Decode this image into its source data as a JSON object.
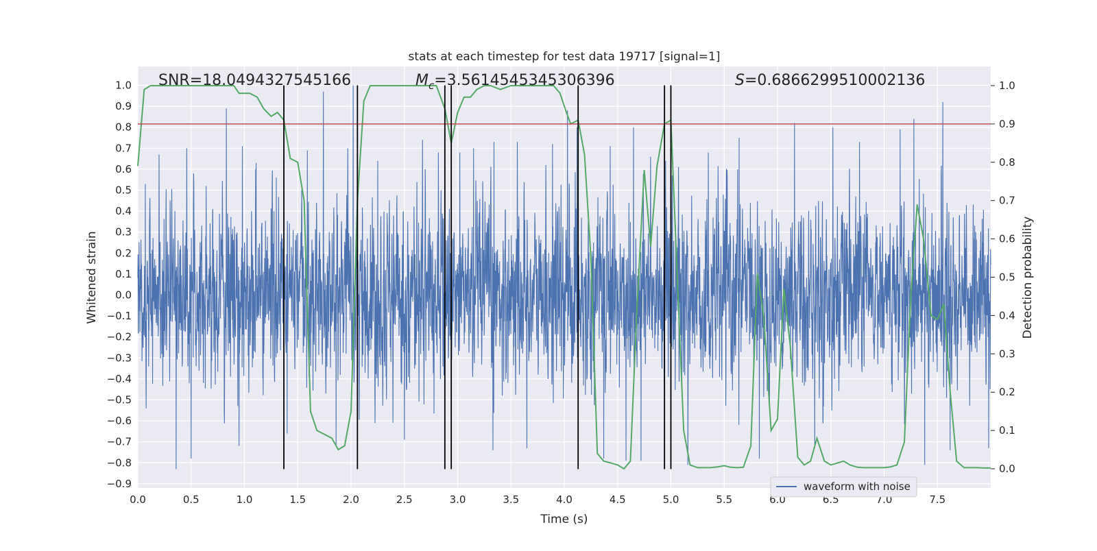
{
  "chart_data": {
    "type": "line",
    "title": "stats at each timestep for test data 19717 [signal=1]",
    "xlabel": "Time (s)",
    "ylabel": "Whitened strain",
    "ylabel_right": "Detection probability",
    "xlim": [
      0.0,
      8.0
    ],
    "ylim": [
      -0.92,
      1.09
    ],
    "ylim_right": [
      -0.05,
      1.05
    ],
    "x_ticks": [
      0.0,
      0.5,
      1.0,
      1.5,
      2.0,
      2.5,
      3.0,
      3.5,
      4.0,
      4.5,
      5.0,
      5.5,
      6.0,
      6.5,
      7.0,
      7.5
    ],
    "x_tick_labels": [
      "0.0",
      "0.5",
      "1.0",
      "1.5",
      "2.0",
      "2.5",
      "3.0",
      "3.5",
      "4.0",
      "4.5",
      "5.0",
      "5.5",
      "6.0",
      "6.5",
      "7.0",
      "7.5"
    ],
    "y_ticks": [
      -0.9,
      -0.8,
      -0.7,
      -0.6,
      -0.5,
      -0.4,
      -0.3,
      -0.2,
      -0.1,
      0.0,
      0.1,
      0.2,
      0.3,
      0.4,
      0.5,
      0.6,
      0.7,
      0.8,
      0.9,
      1.0
    ],
    "y_tick_labels": [
      "−0.9",
      "−0.8",
      "−0.7",
      "−0.6",
      "−0.5",
      "−0.4",
      "−0.3",
      "−0.2",
      "−0.1",
      "0.0",
      "0.1",
      "0.2",
      "0.3",
      "0.4",
      "0.5",
      "0.6",
      "0.7",
      "0.8",
      "0.9",
      "1.0"
    ],
    "y_right_ticks": [
      0.0,
      0.1,
      0.2,
      0.3,
      0.4,
      0.5,
      0.6,
      0.7,
      0.8,
      0.9,
      1.0
    ],
    "y_right_tick_labels": [
      "0.0",
      "0.1",
      "0.2",
      "0.3",
      "0.4",
      "0.5",
      "0.6",
      "0.7",
      "0.8",
      "0.9",
      "1.0"
    ],
    "grid": true,
    "legend": {
      "placement": "lower-right",
      "entries": [
        "waveform with noise"
      ]
    },
    "annotations": {
      "snr": "SNR=18.0494327545166",
      "mc_symbol": "M",
      "mc_subscript": "c",
      "mc_value": "=3.5614545345306396",
      "s_symbol": "S",
      "s_value": "=0.6866299510002136"
    },
    "threshold_right": 0.9,
    "vertical_lines_x": [
      1.37,
      2.06,
      2.88,
      2.94,
      4.13,
      4.94,
      5.0
    ],
    "vertical_lines_y_range": [
      -0.83,
      1.0
    ],
    "colors": {
      "waveform": "#4c72b0",
      "probability": "#55a868",
      "threshold": "#c44e52",
      "vertical": "#000000",
      "background": "#eaeaf2"
    },
    "series": [
      {
        "name": "waveform with noise",
        "axis": "left",
        "sample_count": 4096,
        "typical_amplitude": 0.45,
        "peaks": [
          {
            "x": 0.07,
            "y": 0.53
          },
          {
            "x": 0.2,
            "y": 0.67
          },
          {
            "x": 0.36,
            "y": -0.83
          },
          {
            "x": 0.46,
            "y": 0.7
          },
          {
            "x": 0.5,
            "y": -0.78
          },
          {
            "x": 0.64,
            "y": 0.52
          },
          {
            "x": 0.83,
            "y": 0.89
          },
          {
            "x": 0.95,
            "y": -0.72
          },
          {
            "x": 0.98,
            "y": 0.71
          },
          {
            "x": 1.11,
            "y": 0.63
          },
          {
            "x": 1.3,
            "y": 0.56
          },
          {
            "x": 1.4,
            "y": -0.66
          },
          {
            "x": 1.59,
            "y": 0.69
          },
          {
            "x": 1.74,
            "y": 0.97
          },
          {
            "x": 1.86,
            "y": -0.72
          },
          {
            "x": 1.97,
            "y": 0.7
          },
          {
            "x": 2.02,
            "y": 1.0
          },
          {
            "x": 2.06,
            "y": -0.83
          },
          {
            "x": 2.25,
            "y": 0.64
          },
          {
            "x": 2.5,
            "y": -0.69
          },
          {
            "x": 2.67,
            "y": 0.74
          },
          {
            "x": 2.82,
            "y": 0.68
          },
          {
            "x": 3.02,
            "y": 0.68
          },
          {
            "x": 3.15,
            "y": 0.7
          },
          {
            "x": 3.33,
            "y": -0.74
          },
          {
            "x": 3.34,
            "y": 0.73
          },
          {
            "x": 3.56,
            "y": 0.73
          },
          {
            "x": 3.65,
            "y": -0.73
          },
          {
            "x": 3.89,
            "y": 0.72
          },
          {
            "x": 4.03,
            "y": 0.88
          },
          {
            "x": 4.12,
            "y": 0.8
          },
          {
            "x": 4.37,
            "y": -0.78
          },
          {
            "x": 4.43,
            "y": 0.71
          },
          {
            "x": 4.58,
            "y": -0.79
          },
          {
            "x": 4.65,
            "y": 0.8
          },
          {
            "x": 4.72,
            "y": -0.79
          },
          {
            "x": 4.81,
            "y": 0.66
          },
          {
            "x": 4.95,
            "y": 0.64
          },
          {
            "x": 5.16,
            "y": -0.81
          },
          {
            "x": 5.35,
            "y": 0.68
          },
          {
            "x": 5.64,
            "y": 0.75
          },
          {
            "x": 5.83,
            "y": -0.78
          },
          {
            "x": 6.16,
            "y": 0.82
          },
          {
            "x": 6.35,
            "y": -0.73
          },
          {
            "x": 6.52,
            "y": 0.8
          },
          {
            "x": 6.77,
            "y": 0.73
          },
          {
            "x": 7.15,
            "y": 0.79
          },
          {
            "x": 7.28,
            "y": 0.84
          },
          {
            "x": 7.38,
            "y": -0.81
          },
          {
            "x": 7.55,
            "y": 0.92
          },
          {
            "x": 7.62,
            "y": -0.74
          },
          {
            "x": 7.98,
            "y": -0.73
          }
        ]
      },
      {
        "name": "",
        "axis": "right",
        "x": [
          0.0,
          0.06,
          0.12,
          0.2,
          0.3,
          0.4,
          0.5,
          0.6,
          0.7,
          0.8,
          0.9,
          0.95,
          1.05,
          1.12,
          1.18,
          1.25,
          1.31,
          1.37,
          1.43,
          1.5,
          1.56,
          1.62,
          1.68,
          1.75,
          1.82,
          1.88,
          1.94,
          2.0,
          2.06,
          2.12,
          2.18,
          2.25,
          2.35,
          2.5,
          2.65,
          2.8,
          2.88,
          2.94,
          3.0,
          3.06,
          3.12,
          3.18,
          3.25,
          3.31,
          3.4,
          3.5,
          3.6,
          3.7,
          3.8,
          3.9,
          3.96,
          4.02,
          4.06,
          4.13,
          4.19,
          4.25,
          4.31,
          4.37,
          4.44,
          4.5,
          4.56,
          4.62,
          4.68,
          4.75,
          4.81,
          4.87,
          4.94,
          5.0,
          5.06,
          5.12,
          5.18,
          5.25,
          5.31,
          5.37,
          5.44,
          5.5,
          5.56,
          5.62,
          5.68,
          5.75,
          5.81,
          5.87,
          5.94,
          6.0,
          6.06,
          6.12,
          6.19,
          6.25,
          6.31,
          6.37,
          6.44,
          6.5,
          6.56,
          6.62,
          6.68,
          6.75,
          6.81,
          6.87,
          6.94,
          7.0,
          7.06,
          7.12,
          7.19,
          7.25,
          7.31,
          7.37,
          7.44,
          7.5,
          7.56,
          7.62,
          7.68,
          7.75,
          7.81,
          7.87,
          7.94,
          8.0
        ],
        "values": [
          0.79,
          0.99,
          1.0,
          1.0,
          1.0,
          1.0,
          1.0,
          1.0,
          1.0,
          1.0,
          1.0,
          0.98,
          0.98,
          0.97,
          0.94,
          0.92,
          0.93,
          0.91,
          0.81,
          0.8,
          0.7,
          0.15,
          0.1,
          0.09,
          0.08,
          0.05,
          0.06,
          0.15,
          0.7,
          0.96,
          1.0,
          1.0,
          1.0,
          1.0,
          1.0,
          1.0,
          0.94,
          0.85,
          0.93,
          0.97,
          0.97,
          0.99,
          1.0,
          1.0,
          0.99,
          1.0,
          1.0,
          1.0,
          1.0,
          1.0,
          0.98,
          0.93,
          0.9,
          0.91,
          0.82,
          0.55,
          0.04,
          0.02,
          0.015,
          0.01,
          0.0,
          0.02,
          0.41,
          0.78,
          0.58,
          0.79,
          0.9,
          0.91,
          0.5,
          0.1,
          0.01,
          0.003,
          0.003,
          0.003,
          0.005,
          0.008,
          0.004,
          0.003,
          0.004,
          0.06,
          0.51,
          0.4,
          0.1,
          0.13,
          0.47,
          0.32,
          0.03,
          0.01,
          0.02,
          0.08,
          0.02,
          0.01,
          0.015,
          0.02,
          0.01,
          0.004,
          0.003,
          0.003,
          0.003,
          0.003,
          0.005,
          0.01,
          0.07,
          0.45,
          0.69,
          0.6,
          0.4,
          0.39,
          0.43,
          0.2,
          0.02,
          0.003,
          0.003,
          0.003,
          0.002,
          0.002
        ]
      }
    ]
  }
}
